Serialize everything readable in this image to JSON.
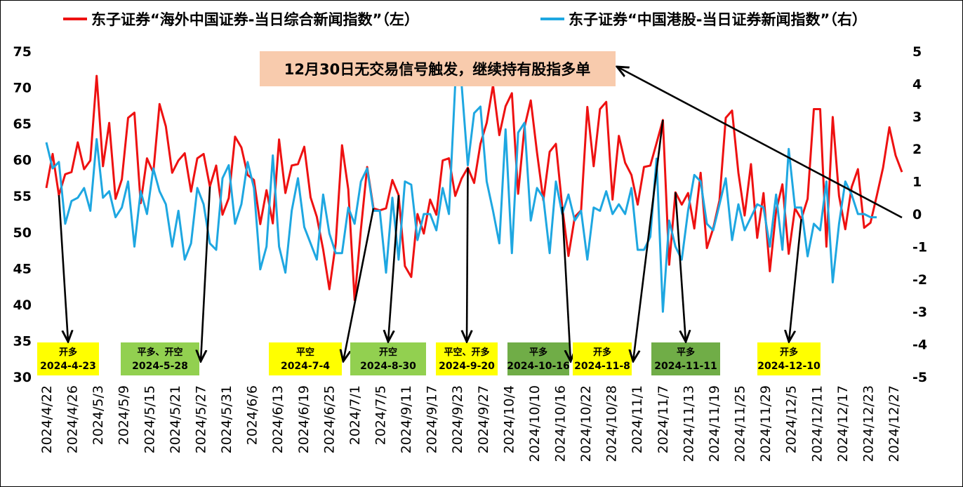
{
  "chart_data": {
    "type": "line",
    "legend_position": "top",
    "grid": false,
    "series": [
      {
        "name": "东子证券“海外中国证券-当日综合新闻指数”（左）",
        "axis": "left",
        "color": "#ee1111",
        "values": [
          56.1,
          60.8,
          55.1,
          58.0,
          58.3,
          62.4,
          58.7,
          59.9,
          71.6,
          59.1,
          65.1,
          54.6,
          57.3,
          65.8,
          66.5,
          54.0,
          60.2,
          58.2,
          67.7,
          64.6,
          58.2,
          59.9,
          60.9,
          55.6,
          60.2,
          60.8,
          56.3,
          59.2,
          52.4,
          54.7,
          63.2,
          61.7,
          57.9,
          57.2,
          51.1,
          55.8,
          51.2,
          62.8,
          55.4,
          59.2,
          59.4,
          61.8,
          54.8,
          52.1,
          47.6,
          42.1,
          48.4,
          62.0,
          55.9,
          40.6,
          50.4,
          59.0,
          53.3,
          53.0,
          53.3,
          57.2,
          55.1,
          45.3,
          43.8,
          52.5,
          49.8,
          54.5,
          52.4,
          59.9,
          60.2,
          55.0,
          57.4,
          58.9,
          56.8,
          62.2,
          65.1,
          70.3,
          63.4,
          67.4,
          69.2,
          55.3,
          64.5,
          68.2,
          61.0,
          54.4,
          61.1,
          62.2,
          53.5,
          46.7,
          52.1,
          53.0,
          67.3,
          59.1,
          67.0,
          68.0,
          54.5,
          63.3,
          59.6,
          57.9,
          53.8,
          59.0,
          59.2,
          62.3,
          65.5,
          45.5,
          55.5,
          53.8,
          55.4,
          50.5,
          58.2,
          47.8,
          50.5,
          54.4,
          65.8,
          66.8,
          58.2,
          52.3,
          59.4,
          49.2,
          55.4,
          44.6,
          52.9,
          56.6,
          47.0,
          53.3,
          51.8,
          54.6,
          67.0,
          67.0,
          48.0,
          65.9,
          55.0,
          50.4,
          56.2,
          58.7,
          50.6,
          51.3,
          55.0,
          58.9,
          64.5,
          60.6,
          58.3
        ]
      },
      {
        "name": "东子证券“中国港股-当日证券新闻指数”（右）",
        "axis": "right",
        "color": "#1ea7e1",
        "values": [
          2.2,
          1.4,
          1.6,
          -0.3,
          0.4,
          0.5,
          0.8,
          0.1,
          2.3,
          0.5,
          0.7,
          -0.1,
          0.2,
          1.0,
          -1.0,
          0.7,
          0.0,
          1.4,
          0.7,
          0.3,
          -1.0,
          0.1,
          -1.4,
          -0.9,
          0.8,
          0.3,
          -0.9,
          -1.1,
          1.1,
          1.5,
          -0.3,
          0.3,
          1.6,
          0.8,
          -1.7,
          -1.0,
          1.8,
          -1.0,
          -1.8,
          0.1,
          1.1,
          -0.4,
          -0.9,
          -1.4,
          0.6,
          -0.6,
          -1.2,
          -1.2,
          0.2,
          -0.3,
          1.0,
          1.4,
          0.1,
          0.1,
          -1.8,
          0.5,
          -1.4,
          1.0,
          0.9,
          -0.8,
          0.0,
          0.0,
          -0.5,
          0.8,
          0.0,
          4.0,
          4.0,
          1.5,
          3.1,
          3.3,
          1.0,
          0.1,
          -0.9,
          2.6,
          -1.2,
          2.5,
          2.8,
          -0.2,
          0.8,
          0.5,
          -1.2,
          1.0,
          0.0,
          0.6,
          -0.2,
          0.1,
          -1.4,
          0.2,
          0.1,
          0.7,
          0.0,
          0.3,
          0.0,
          0.8,
          -1.1,
          -1.1,
          -0.7,
          1.7,
          -3.0,
          -0.2,
          -1.0,
          -1.4,
          0.1,
          1.2,
          1.0,
          -0.3,
          -0.5,
          0.3,
          1.1,
          -0.8,
          0.3,
          -0.5,
          -0.1,
          0.3,
          0.2,
          -1.0,
          0.6,
          -1.1,
          2.0,
          0.2,
          0.2,
          -1.3,
          -0.3,
          -0.5,
          1.0,
          -2.1,
          -0.3,
          1.0,
          0.6,
          0.0,
          0.0,
          -0.1,
          -0.1
        ]
      }
    ],
    "x_tick_labels": [
      "2024/4/22",
      "2024/4/26",
      "2024/5/3",
      "2024/5/9",
      "2024/5/15",
      "2024/5/21",
      "2024/5/27",
      "2024/5/31",
      "2024/6/6",
      "2024/6/13",
      "2024/6/19",
      "2024/6/25",
      "2024/7/1",
      "2024/7/5",
      "2024/9/11",
      "2024/9/17",
      "2024/9/23",
      "2024/9/27",
      "2024/10/4",
      "2024/10/10",
      "2024/10/16",
      "2024/10/22",
      "2024/10/28",
      "2024/11/1",
      "2024/11/7",
      "2024/11/13",
      "2024/11/19",
      "2024/11/25",
      "2024/11/29",
      "2024/12/5",
      "2024/12/11",
      "2024/12/17",
      "2024/12/23",
      "2024/12/27"
    ],
    "y_left": {
      "min": 30,
      "max": 75,
      "ticks": [
        "30",
        "35",
        "40",
        "45",
        "50",
        "55",
        "60",
        "65",
        "70",
        "75"
      ]
    },
    "y_right": {
      "min": -5,
      "max": 5,
      "ticks": [
        "-5",
        "-4",
        "-3",
        "-2",
        "-1",
        "0",
        "1",
        "2",
        "3",
        "4",
        "5"
      ]
    },
    "annotation": {
      "text": "12月30日无交易信号触发，继续持有股指多单",
      "bg": "#f8cbad",
      "target_index": 134
    },
    "signals": [
      {
        "action": "开多",
        "date": "2024-4-23",
        "bg": "#ffff00",
        "index": 2,
        "from": "top"
      },
      {
        "action": "平多、开空",
        "date": "2024-5-28",
        "bg": "#92d050",
        "index": 26,
        "from": "top"
      },
      {
        "action": "平空",
        "date": "2024-7-4",
        "bg": "#ffff00",
        "index": 52,
        "from": "bottom"
      },
      {
        "action": "开空",
        "date": "2024-8-30",
        "bg": "#92d050",
        "index": 56,
        "from": "top"
      },
      {
        "action": "平空、开多",
        "date": "2024-9-20",
        "bg": "#ffff00",
        "index": 67,
        "from": "top"
      },
      {
        "action": "平多",
        "date": "2024-10-16",
        "bg": "#70ad47",
        "index": 82,
        "from": "bottom"
      },
      {
        "action": "开多",
        "date": "2024-11-8",
        "bg": "#ffff00",
        "index": 98,
        "from": "bottom"
      },
      {
        "action": "平多",
        "date": "2024-11-11",
        "bg": "#70ad47",
        "index": 100,
        "from": "top"
      },
      {
        "action": "开多",
        "date": "2024-12-10",
        "bg": "#ffff00",
        "index": 120,
        "from": "bottom"
      }
    ]
  }
}
